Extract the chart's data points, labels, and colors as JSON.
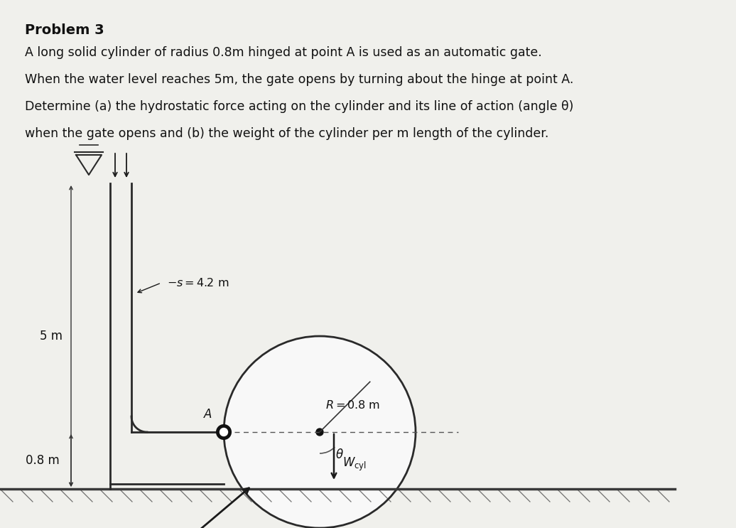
{
  "background_color": "#f0f0ec",
  "title_bold": "Problem 3",
  "body_text": "A long solid cylinder of radius 0.8m hinged at point A is used as an automatic gate.\nWhen the water level reaches 5m, the gate opens by turning about the hinge at point A.\nDetermine (a) the hydrostatic force acting on the cylinder and its line of action (angle θ)\nwhen the gate opens and (b) the weight of the cylinder per m length of the cylinder.",
  "colors": {
    "wall": "#2a2a2a",
    "floor": "#3a3a3a",
    "cylinder_edge": "#2a2a2a",
    "cylinder_face": "#f8f8f8",
    "hinge_outer": "#111111",
    "hinge_inner": "#ffffff",
    "arrow": "#1a1a1a",
    "text": "#111111",
    "dashed_line": "#555555",
    "dim_line": "#333333"
  },
  "fig_width": 10.36,
  "fig_height": 7.43,
  "dpi": 100
}
